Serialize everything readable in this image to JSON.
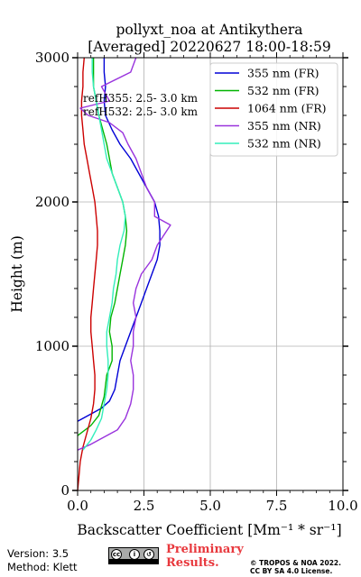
{
  "chart_data": {
    "type": "line",
    "title": "pollyxt_noa at Antikythera",
    "subtitle": "[Averaged] 20220627 18:00-18:59",
    "xlabel": "Backscatter Coefficient [Mm⁻¹ * sr⁻¹]",
    "ylabel": "Height (m)",
    "xlim": [
      0,
      10
    ],
    "ylim": [
      0,
      3000
    ],
    "xticks": [
      0,
      2.5,
      5,
      7.5,
      10
    ],
    "xtick_labels": [
      "0.0",
      "2.5",
      "5.0",
      "7.5",
      "10.0"
    ],
    "yticks": [
      0,
      1000,
      2000,
      3000
    ],
    "ytick_labels": [
      "0",
      "1000",
      "2000",
      "3000"
    ],
    "grid": true,
    "legend_position": "top-right",
    "annotations": [
      "refH355:  2.5- 3.0 km",
      "refH532:  2.5- 3.0 km"
    ],
    "series": [
      {
        "name": "355 nm (FR)",
        "color": "#0000d6",
        "points": [
          [
            0,
            480
          ],
          [
            0.5,
            530
          ],
          [
            0.9,
            570
          ],
          [
            1.2,
            620
          ],
          [
            1.4,
            700
          ],
          [
            1.5,
            800
          ],
          [
            1.6,
            900
          ],
          [
            1.8,
            1000
          ],
          [
            2.0,
            1100
          ],
          [
            2.2,
            1200
          ],
          [
            2.4,
            1300
          ],
          [
            2.6,
            1400
          ],
          [
            2.8,
            1500
          ],
          [
            3.0,
            1600
          ],
          [
            3.1,
            1700
          ],
          [
            3.1,
            1800
          ],
          [
            3.05,
            1900
          ],
          [
            2.9,
            2000
          ],
          [
            2.6,
            2100
          ],
          [
            2.3,
            2200
          ],
          [
            2.0,
            2300
          ],
          [
            1.6,
            2400
          ],
          [
            1.3,
            2500
          ],
          [
            1.05,
            2600
          ],
          [
            1.0,
            2700
          ],
          [
            1.05,
            2800
          ],
          [
            1.0,
            2900
          ],
          [
            1.0,
            3000
          ]
        ]
      },
      {
        "name": "532 nm (FR)",
        "color": "#00b400",
        "points": [
          [
            0,
            380
          ],
          [
            0.5,
            450
          ],
          [
            0.8,
            520
          ],
          [
            1.0,
            650
          ],
          [
            1.1,
            800
          ],
          [
            1.3,
            900
          ],
          [
            1.3,
            1000
          ],
          [
            1.2,
            1100
          ],
          [
            1.25,
            1200
          ],
          [
            1.4,
            1300
          ],
          [
            1.5,
            1400
          ],
          [
            1.6,
            1500
          ],
          [
            1.7,
            1600
          ],
          [
            1.8,
            1700
          ],
          [
            1.85,
            1800
          ],
          [
            1.8,
            1900
          ],
          [
            1.7,
            2000
          ],
          [
            1.5,
            2100
          ],
          [
            1.3,
            2200
          ],
          [
            1.2,
            2300
          ],
          [
            1.1,
            2400
          ],
          [
            0.95,
            2500
          ],
          [
            0.8,
            2600
          ],
          [
            0.7,
            2700
          ],
          [
            0.6,
            2800
          ],
          [
            0.6,
            2900
          ],
          [
            0.6,
            3000
          ]
        ]
      },
      {
        "name": "1064 nm (FR)",
        "color": "#cc0000",
        "points": [
          [
            0,
            0
          ],
          [
            0.05,
            100
          ],
          [
            0.1,
            200
          ],
          [
            0.2,
            300
          ],
          [
            0.35,
            400
          ],
          [
            0.5,
            500
          ],
          [
            0.6,
            600
          ],
          [
            0.65,
            700
          ],
          [
            0.65,
            800
          ],
          [
            0.6,
            900
          ],
          [
            0.55,
            1000
          ],
          [
            0.5,
            1100
          ],
          [
            0.5,
            1200
          ],
          [
            0.55,
            1300
          ],
          [
            0.6,
            1400
          ],
          [
            0.65,
            1500
          ],
          [
            0.7,
            1600
          ],
          [
            0.75,
            1700
          ],
          [
            0.75,
            1800
          ],
          [
            0.7,
            1900
          ],
          [
            0.65,
            2000
          ],
          [
            0.55,
            2100
          ],
          [
            0.45,
            2200
          ],
          [
            0.35,
            2300
          ],
          [
            0.25,
            2400
          ],
          [
            0.2,
            2500
          ],
          [
            0.15,
            2600
          ],
          [
            0.15,
            2700
          ],
          [
            0.2,
            2800
          ],
          [
            0.2,
            2900
          ],
          [
            0.25,
            3000
          ]
        ]
      },
      {
        "name": "355 nm (NR)",
        "color": "#9933dd",
        "points": [
          [
            0,
            280
          ],
          [
            0.5,
            320
          ],
          [
            1.0,
            370
          ],
          [
            1.5,
            420
          ],
          [
            1.8,
            500
          ],
          [
            2.0,
            600
          ],
          [
            2.1,
            700
          ],
          [
            2.1,
            800
          ],
          [
            2.0,
            900
          ],
          [
            2.1,
            1000
          ],
          [
            2.1,
            1100
          ],
          [
            2.2,
            1200
          ],
          [
            2.1,
            1300
          ],
          [
            2.2,
            1400
          ],
          [
            2.4,
            1500
          ],
          [
            2.8,
            1600
          ],
          [
            3.0,
            1700
          ],
          [
            3.5,
            1840
          ],
          [
            2.9,
            1900
          ],
          [
            2.9,
            2000
          ],
          [
            2.6,
            2100
          ],
          [
            2.4,
            2200
          ],
          [
            2.2,
            2300
          ],
          [
            1.9,
            2400
          ],
          [
            1.7,
            2480
          ],
          [
            1.2,
            2550
          ],
          [
            0.4,
            2600
          ],
          [
            0.1,
            2650
          ],
          [
            1.2,
            2700
          ],
          [
            0.9,
            2800
          ],
          [
            2.0,
            2900
          ],
          [
            2.2,
            3000
          ]
        ]
      },
      {
        "name": "532 nm (NR)",
        "color": "#33eebb",
        "points": [
          [
            0.2,
            280
          ],
          [
            0.5,
            350
          ],
          [
            0.7,
            420
          ],
          [
            0.9,
            500
          ],
          [
            1.0,
            600
          ],
          [
            1.1,
            700
          ],
          [
            1.15,
            800
          ],
          [
            1.15,
            900
          ],
          [
            1.1,
            1000
          ],
          [
            1.1,
            1100
          ],
          [
            1.2,
            1200
          ],
          [
            1.3,
            1300
          ],
          [
            1.35,
            1400
          ],
          [
            1.45,
            1500
          ],
          [
            1.5,
            1600
          ],
          [
            1.6,
            1700
          ],
          [
            1.75,
            1800
          ],
          [
            1.8,
            1900
          ],
          [
            1.7,
            2000
          ],
          [
            1.5,
            2100
          ],
          [
            1.3,
            2200
          ],
          [
            1.1,
            2300
          ],
          [
            1.0,
            2400
          ],
          [
            0.9,
            2500
          ],
          [
            0.8,
            2600
          ],
          [
            0.7,
            2700
          ],
          [
            0.6,
            2800
          ],
          [
            0.55,
            2900
          ],
          [
            0.55,
            3000
          ]
        ]
      }
    ]
  },
  "footer": {
    "version": "Version: 3.5",
    "method": "Method: Klett",
    "preliminary_line1": "Preliminary",
    "preliminary_line2": "Results.",
    "copyright_line1": "© TROPOS & NOA 2022.",
    "copyright_line2": "CC BY SA 4.0 License.",
    "license_badge": "cc by sa"
  }
}
